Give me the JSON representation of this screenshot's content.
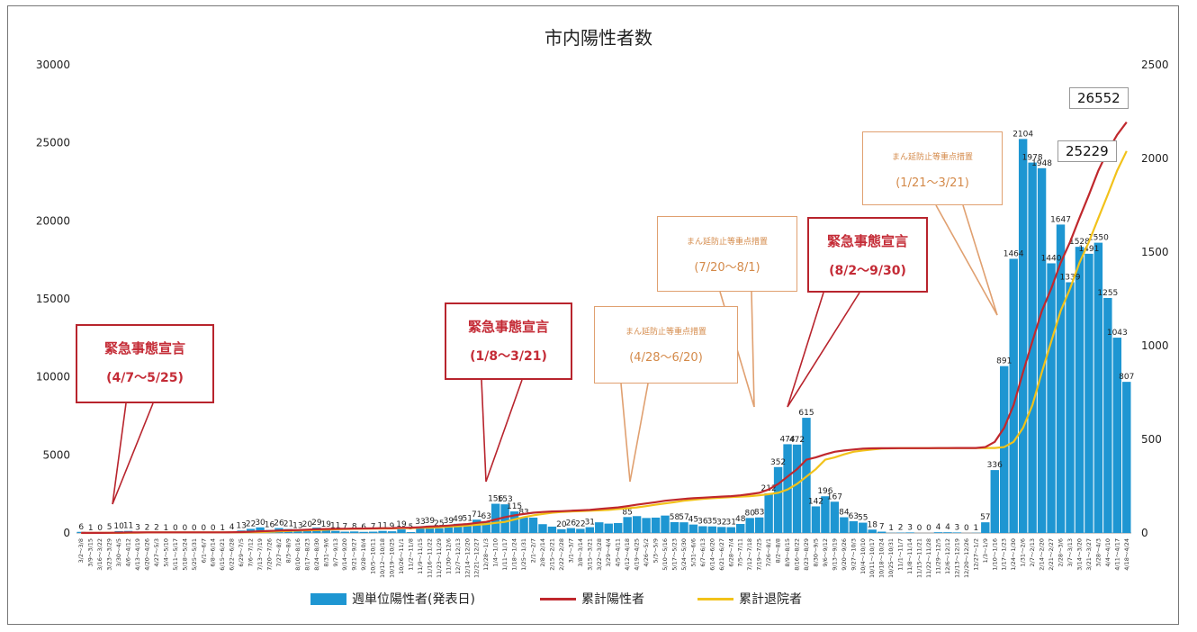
{
  "chart_data": {
    "type": "bar+line",
    "title": "市内陽性者数",
    "y_left": {
      "range": [
        0,
        30000
      ],
      "ticks": [
        "0",
        "5000",
        "10000",
        "15000",
        "20000",
        "25000",
        "30000"
      ]
    },
    "y_right": {
      "range": [
        0,
        2500
      ],
      "ticks": [
        "0",
        "500",
        "1000",
        "1500",
        "2000",
        "2500"
      ]
    },
    "categories": [
      "3/2～3/8",
      "3/9～3/15",
      "3/16～3/22",
      "3/23～3/29",
      "3/30～4/5",
      "4/6～4/12",
      "4/13～4/19",
      "4/20～4/26",
      "4/27～5/3",
      "5/4～5/10",
      "5/11～5/17",
      "5/18～5/24",
      "5/25～5/31",
      "6/1～6/7",
      "6/8～6/14",
      "6/15～6/21",
      "6/22～6/28",
      "6/29～7/5",
      "7/6～7/12",
      "7/13～7/19",
      "7/20～7/26",
      "7/27～8/2",
      "8/3～8/9",
      "8/10～8/16",
      "8/17～8/23",
      "8/24～8/30",
      "8/31～9/6",
      "9/7～9/13",
      "9/14～9/20",
      "9/21～9/27",
      "9/28～10/4",
      "10/5～10/11",
      "10/12～10/18",
      "10/19～10/25",
      "10/26～11/1",
      "11/2～11/8",
      "11/9～11/15",
      "11/16～11/22",
      "11/23～11/29",
      "11/30～12/6",
      "12/7～12/13",
      "12/14～12/20",
      "12/21～12/27",
      "12/28～1/3",
      "1/4～1/10",
      "1/11～1/17",
      "1/18～1/24",
      "1/25～1/31",
      "2/1～2/7",
      "2/8～2/14",
      "2/15～2/21",
      "2/22～2/28",
      "3/1～3/7",
      "3/8～3/14",
      "3/15～3/21",
      "3/22～3/28",
      "3/29～4/4",
      "4/5～4/11",
      "4/12～4/18",
      "4/19～4/25",
      "4/26～5/2",
      "5/3～5/9",
      "5/10～5/16",
      "5/17～5/23",
      "5/24～5/30",
      "5/31～6/6",
      "6/7～6/13",
      "6/14～6/20",
      "6/21～6/27",
      "6/28～7/4",
      "7/5～7/11",
      "7/12～7/18",
      "7/19～7/25",
      "7/26～8/1",
      "8/2～8/8",
      "8/9～8/15",
      "8/16～8/22",
      "8/23～8/29",
      "8/30～9/5",
      "9/6～9/12",
      "9/13～9/19",
      "9/20～9/26",
      "9/27～10/3",
      "10/4～10/10",
      "10/11～10/17",
      "10/18～10/24",
      "10/25～10/31",
      "11/1～11/7",
      "11/8～11/14",
      "11/15～11/21",
      "11/22～11/28",
      "11/29～12/5",
      "12/6～12/12",
      "12/13～12/19",
      "12/20～12/26",
      "12/27～1/2",
      "1/3～1/9",
      "1/10～1/16",
      "1/17～1/23",
      "1/24～1/30",
      "1/31～2/6",
      "2/7～2/13",
      "2/14～2/20",
      "2/21～2/27",
      "2/28～3/6",
      "3/7～3/13",
      "3/14～3/20",
      "3/21～3/27",
      "3/28～4/3",
      "4/4～4/10",
      "4/11～4/17",
      "4/18～4/24"
    ],
    "series": [
      {
        "name": "週単位陽性者(発表日)",
        "axis": "right",
        "type": "bar",
        "color": "#1e96d2",
        "values": [
          6,
          1,
          0,
          5,
          10,
          11,
          3,
          2,
          2,
          1,
          0,
          0,
          0,
          0,
          0,
          1,
          4,
          13,
          22,
          30,
          16,
          26,
          21,
          13,
          20,
          29,
          19,
          11,
          7,
          8,
          6,
          7,
          11,
          9,
          19,
          5,
          33,
          39,
          25,
          39,
          49,
          51,
          71,
          63,
          156,
          153,
          115,
          83,
          82,
          47,
          34,
          20,
          26,
          22,
          31,
          57,
          50,
          53,
          85,
          90,
          80,
          82,
          93,
          58,
          57,
          45,
          36,
          35,
          32,
          31,
          48,
          80,
          83,
          212,
          352,
          474,
          472,
          615,
          142,
          196,
          167,
          84,
          63,
          55,
          18,
          7,
          1,
          2,
          3,
          0,
          0,
          4,
          4,
          3,
          0,
          1,
          57,
          336,
          891,
          1464,
          2104,
          1978,
          1948,
          1440,
          1647,
          1339,
          1528,
          1491,
          1550,
          1255,
          1043,
          807
        ],
        "labels": [
          "6",
          "1",
          "0",
          "5",
          "10",
          "11",
          "3",
          "2",
          "2",
          "1",
          "0",
          "0",
          "0",
          "0",
          "0",
          "1",
          "4",
          "13",
          "22",
          "30",
          "16",
          "26",
          "21",
          "13",
          "20",
          "29",
          "19",
          "11",
          "7",
          "8",
          "6",
          "7",
          "11",
          "9",
          "19",
          "5",
          "33",
          "39",
          "25",
          "39",
          "49",
          "51",
          "71",
          "63",
          "156",
          "153",
          "115",
          "83",
          "",
          "",
          "",
          "20",
          "26",
          "22",
          "31",
          "",
          "",
          "",
          "85",
          "",
          "",
          "",
          "",
          "58",
          "57",
          "45",
          "36",
          "35",
          "32",
          "31",
          "48",
          "80",
          "83",
          "212",
          "352",
          "474",
          "472",
          "615",
          "142",
          "196",
          "167",
          "84",
          "63",
          "55",
          "18",
          "7",
          "1",
          "2",
          "3",
          "0",
          "0",
          "4",
          "4",
          "3",
          "0",
          "1",
          "57",
          "336",
          "891",
          "1464",
          "2104",
          "1978",
          "1948",
          "1440",
          "1647",
          "1339",
          "1528",
          "1491",
          "1550",
          "1255",
          "1043",
          "807"
        ]
      },
      {
        "name": "累計陽性者",
        "axis": "left",
        "type": "line",
        "color": "#c0282d"
      },
      {
        "name": "累計退院者",
        "axis": "left",
        "type": "line",
        "color": "#f2c21a"
      }
    ],
    "end_labels": [
      "26552",
      "25229"
    ],
    "annotations": [
      {
        "style": "red",
        "line1": "緊急事態宣言",
        "line2": "(4/7～5/25)"
      },
      {
        "style": "red",
        "line1": "緊急事態宣言",
        "line2": "(1/8～3/21)"
      },
      {
        "style": "orange",
        "line1": "まん延防止等重点措置",
        "line2": "(4/28～6/20)"
      },
      {
        "style": "orange",
        "line1": "まん延防止等重点措置",
        "line2": "(7/20～8/1)"
      },
      {
        "style": "red",
        "line1": "緊急事態宣言",
        "line2": "(8/2～9/30)"
      },
      {
        "style": "orange",
        "line1": "まん延防止等重点措置",
        "line2": "(1/21～3/21)"
      }
    ],
    "legend_position": "bottom"
  }
}
